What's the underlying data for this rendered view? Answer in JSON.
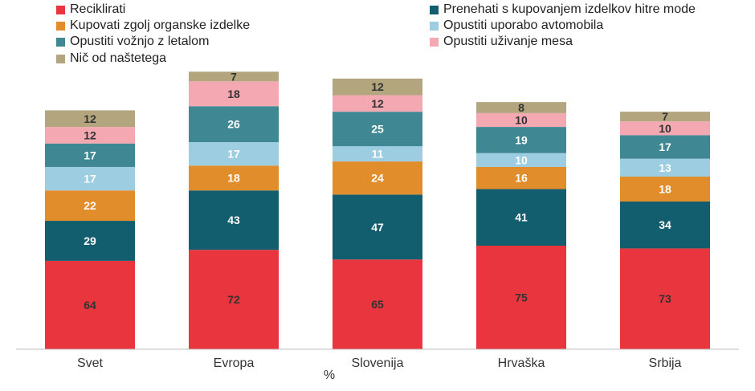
{
  "chart_data": {
    "type": "stacked-bar",
    "categories": [
      "Svet",
      "Evropa",
      "Slovenija",
      "Hrvaška",
      "Srbija"
    ],
    "xlabel": "%",
    "ylabel": "",
    "ylim": [
      0,
      230
    ],
    "series": [
      {
        "name": "Reciklirati",
        "color": "#e8353e",
        "label_color": "#333333",
        "values": [
          64,
          72,
          65,
          75,
          73
        ]
      },
      {
        "name": "Prenehati s kupovanjem izdelkov hitre mode",
        "color": "#135e6e",
        "label_color": "#ffffff",
        "values": [
          29,
          43,
          47,
          41,
          34
        ]
      },
      {
        "name": "Kupovati zgolj organske izdelke",
        "color": "#e28d2c",
        "label_color": "#ffffff",
        "values": [
          22,
          18,
          24,
          16,
          18
        ]
      },
      {
        "name": "Opustiti uporabo avtomobila",
        "color": "#9ccde0",
        "label_color": "#ffffff",
        "values": [
          17,
          17,
          11,
          10,
          13
        ]
      },
      {
        "name": "Opustiti vožnjo z letalom",
        "color": "#3f8792",
        "label_color": "#ffffff",
        "values": [
          17,
          26,
          25,
          19,
          17
        ]
      },
      {
        "name": "Opustiti uživanje mesa",
        "color": "#f4a8b2",
        "label_color": "#333333",
        "values": [
          12,
          18,
          12,
          10,
          10
        ]
      },
      {
        "name": "Nič od naštetega",
        "color": "#b3a67e",
        "label_color": "#333333",
        "values": [
          12,
          7,
          12,
          8,
          7
        ]
      }
    ],
    "legend_position": "top"
  }
}
